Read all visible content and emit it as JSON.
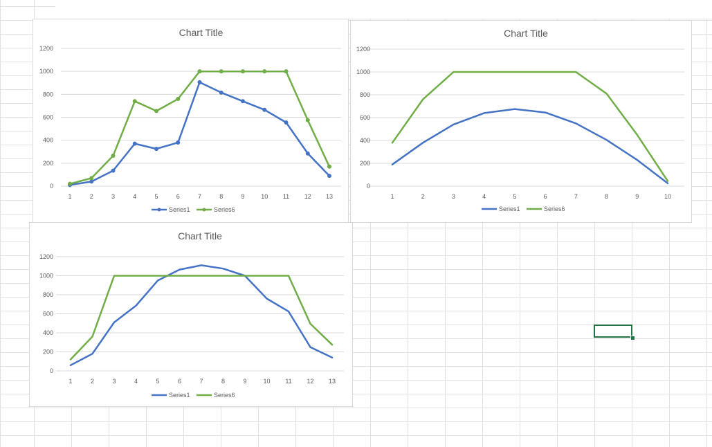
{
  "colors": {
    "series1": "#4472c4",
    "series6": "#70ad47",
    "gridline": "#d9d9d9",
    "cell_border": "#e1e1e1",
    "selection": "#217346",
    "text": "#595959"
  },
  "chart_data": [
    {
      "type": "line",
      "title": "Chart Title",
      "markers": true,
      "x": [
        "1",
        "2",
        "3",
        "4",
        "5",
        "6",
        "7",
        "8",
        "9",
        "10",
        "11",
        "12",
        "13"
      ],
      "ylim": [
        0,
        1200
      ],
      "yticks": [
        "0",
        "200",
        "400",
        "600",
        "800",
        "1000",
        "1200"
      ],
      "grid": true,
      "legend_position": "bottom",
      "series": [
        {
          "name": "Series1",
          "color": "#4472c4",
          "values": [
            10,
            40,
            135,
            370,
            325,
            380,
            905,
            815,
            740,
            665,
            555,
            285,
            90
          ]
        },
        {
          "name": "Series6",
          "color": "#70ad47",
          "values": [
            20,
            70,
            265,
            740,
            655,
            760,
            1000,
            1000,
            1000,
            1000,
            1000,
            575,
            170
          ]
        }
      ]
    },
    {
      "type": "line",
      "title": "Chart Title",
      "markers": false,
      "x": [
        "1",
        "2",
        "3",
        "4",
        "5",
        "6",
        "7",
        "8",
        "9",
        "10"
      ],
      "ylim": [
        0,
        1200
      ],
      "yticks": [
        "0",
        "200",
        "400",
        "600",
        "800",
        "1000",
        "1200"
      ],
      "grid": true,
      "legend_position": "bottom",
      "series": [
        {
          "name": "Series1",
          "color": "#4472c4",
          "values": [
            190,
            380,
            540,
            640,
            675,
            645,
            550,
            405,
            230,
            25
          ]
        },
        {
          "name": "Series6",
          "color": "#70ad47",
          "values": [
            380,
            760,
            1000,
            1000,
            1000,
            1000,
            1000,
            810,
            450,
            45
          ]
        }
      ]
    },
    {
      "type": "line",
      "title": "Chart Title",
      "markers": false,
      "x": [
        "1",
        "2",
        "3",
        "4",
        "5",
        "6",
        "7",
        "8",
        "9",
        "10",
        "11",
        "12",
        "13"
      ],
      "ylim": [
        0,
        1200
      ],
      "yticks": [
        "0",
        "200",
        "400",
        "600",
        "800",
        "1000",
        "1200"
      ],
      "grid": true,
      "legend_position": "bottom",
      "series": [
        {
          "name": "Series1",
          "color": "#4472c4",
          "values": [
            60,
            180,
            510,
            685,
            950,
            1065,
            1110,
            1075,
            1000,
            760,
            625,
            250,
            140
          ]
        },
        {
          "name": "Series6",
          "color": "#70ad47",
          "values": [
            120,
            360,
            1000,
            1000,
            1000,
            1000,
            1000,
            1000,
            1000,
            1000,
            1000,
            495,
            275
          ]
        }
      ]
    }
  ]
}
